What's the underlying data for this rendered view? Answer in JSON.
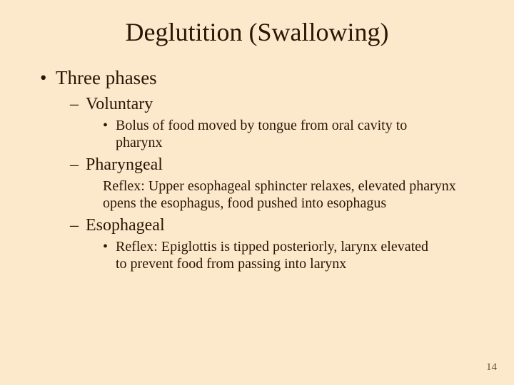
{
  "background_color": "#fce9cc",
  "text_color": "#2b1505",
  "title": {
    "text": "Deglutition (Swallowing)",
    "fontsize": 36
  },
  "content": {
    "level1": {
      "bullet": "•",
      "text": "Three phases"
    },
    "phase1": {
      "dash": "–",
      "label": "Voluntary",
      "detail_bullet": "•",
      "detail": "Bolus of food moved by tongue from oral cavity to pharynx"
    },
    "phase2": {
      "dash": "–",
      "label": "Pharyngeal",
      "detail": "Reflex: Upper esophageal sphincter relaxes, elevated pharynx opens the esophagus, food pushed into esophagus"
    },
    "phase3": {
      "dash": "–",
      "label": "Esophageal",
      "detail_bullet": "•",
      "detail": "Reflex: Epiglottis is tipped posteriorly, larynx elevated to prevent food from passing into larynx"
    }
  },
  "page_number": "14"
}
